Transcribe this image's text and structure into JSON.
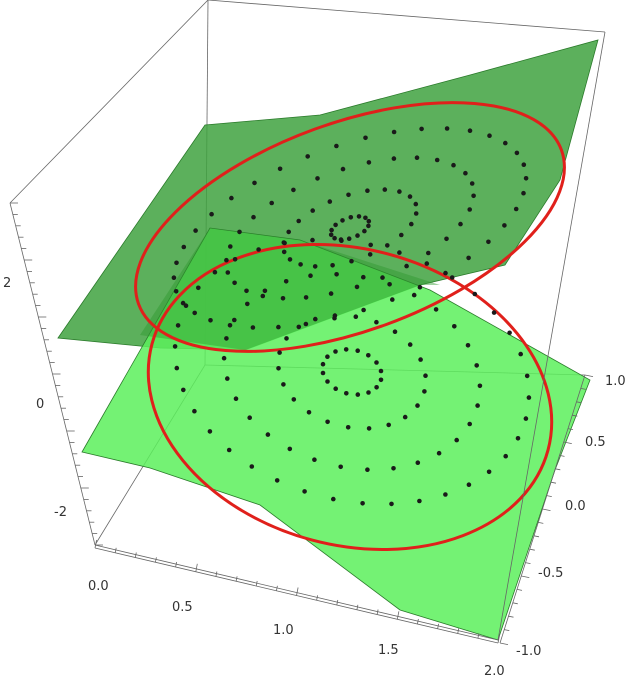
{
  "chart_data": {
    "type": "scatter",
    "title": "",
    "xlabel": "",
    "ylabel": "",
    "zlabel": "",
    "x_ticks": [
      "0.0",
      "0.5",
      "1.0",
      "1.5",
      "2.0"
    ],
    "y_ticks": [
      "-1.0",
      "-0.5",
      "0.0",
      "0.5",
      "1.0"
    ],
    "z_ticks": [
      "-2",
      "0",
      "2"
    ],
    "xlim": [
      0,
      2
    ],
    "ylim": [
      -1,
      1
    ],
    "zlim": [
      -3.2,
      3.4
    ],
    "series": [
      {
        "name": "",
        "kind": "surface",
        "id": "upper",
        "color": "#3fa23f"
      },
      {
        "name": "",
        "kind": "surface",
        "id": "lower",
        "color": "#6cf36c"
      },
      {
        "name": "",
        "kind": "curve",
        "id": "upper-circle",
        "color": "#e0201b"
      },
      {
        "name": "",
        "kind": "curve",
        "id": "lower-circle",
        "color": "#e0201b"
      },
      {
        "name": "",
        "kind": "points",
        "id": "upper-points",
        "color": "#1a1a1a"
      },
      {
        "name": "",
        "kind": "points",
        "id": "lower-points",
        "color": "#1a1a1a"
      }
    ],
    "colors": {
      "upper_surface": "#3fa23f",
      "lower_surface": "#6cf36c",
      "circle": "#e0201b",
      "point": "#1a1a1a",
      "box": "#555555"
    }
  }
}
